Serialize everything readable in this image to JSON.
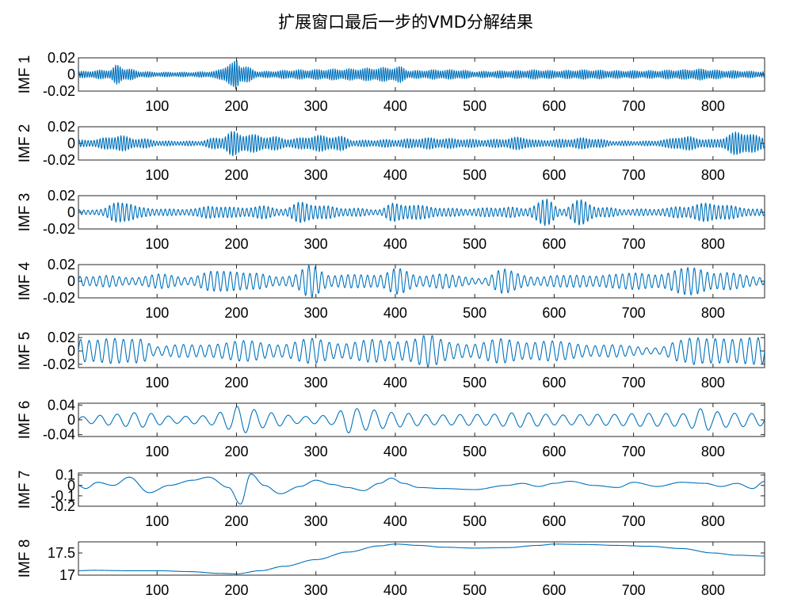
{
  "figure": {
    "title": "扩展窗口最后一步的VMD分解结果",
    "line_color": "#0072BD"
  },
  "chart_data": [
    {
      "type": "line",
      "ylabel": "IMF 1",
      "xlim": [
        1,
        865
      ],
      "ylim": [
        -0.02,
        0.02
      ],
      "xticks": [
        100,
        200,
        300,
        400,
        500,
        600,
        700,
        800
      ],
      "yticks": [
        -0.02,
        0,
        0.02
      ],
      "ytick_labels": [
        "-0.02",
        "0",
        "0.02"
      ],
      "series": [
        {
          "x": [
            1,
            40,
            50,
            60,
            80,
            100,
            140,
            170,
            195,
            200,
            205,
            230,
            280,
            330,
            400,
            405,
            420,
            450,
            480,
            500,
            550,
            580,
            600,
            640,
            680,
            720,
            760,
            780,
            820,
            860,
            865
          ],
          "envelope": [
            0.004,
            0.006,
            0.012,
            0.008,
            0.004,
            0.003,
            0.003,
            0.004,
            0.014,
            0.02,
            0.012,
            0.004,
            0.006,
            0.007,
            0.009,
            0.01,
            0.005,
            0.006,
            0.006,
            0.004,
            0.005,
            0.006,
            0.005,
            0.006,
            0.005,
            0.005,
            0.006,
            0.007,
            0.005,
            0.004,
            0.004
          ],
          "cycles": 300
        }
      ]
    },
    {
      "type": "line",
      "ylabel": "IMF 2",
      "xlim": [
        1,
        865
      ],
      "ylim": [
        -0.02,
        0.02
      ],
      "xticks": [
        100,
        200,
        300,
        400,
        500,
        600,
        700,
        800
      ],
      "yticks": [
        -0.02,
        0,
        0.02
      ],
      "ytick_labels": [
        "-0.02",
        "0",
        "0.02"
      ],
      "series": [
        {
          "x": [
            1,
            20,
            50,
            80,
            110,
            150,
            180,
            195,
            210,
            240,
            270,
            300,
            330,
            350,
            400,
            440,
            480,
            500,
            520,
            560,
            580,
            600,
            640,
            680,
            720,
            740,
            760,
            800,
            835,
            865
          ],
          "envelope": [
            0.004,
            0.005,
            0.01,
            0.006,
            0.003,
            0.003,
            0.008,
            0.015,
            0.012,
            0.009,
            0.006,
            0.01,
            0.009,
            0.004,
            0.005,
            0.007,
            0.006,
            0.005,
            0.005,
            0.008,
            0.004,
            0.005,
            0.007,
            0.003,
            0.003,
            0.005,
            0.009,
            0.005,
            0.015,
            0.008
          ],
          "cycles": 230
        }
      ]
    },
    {
      "type": "line",
      "ylabel": "IMF 3",
      "xlim": [
        1,
        865
      ],
      "ylim": [
        -0.02,
        0.02
      ],
      "xticks": [
        100,
        200,
        300,
        400,
        500,
        600,
        700,
        800
      ],
      "yticks": [
        -0.02,
        0,
        0.02
      ],
      "ytick_labels": [
        "-0.02",
        "0",
        "0.02"
      ],
      "series": [
        {
          "x": [
            1,
            30,
            55,
            80,
            120,
            150,
            170,
            200,
            230,
            260,
            285,
            310,
            350,
            380,
            400,
            440,
            470,
            500,
            540,
            560,
            590,
            610,
            635,
            660,
            700,
            740,
            760,
            800,
            840,
            865
          ],
          "envelope": [
            0.003,
            0.004,
            0.016,
            0.006,
            0.004,
            0.005,
            0.009,
            0.006,
            0.008,
            0.005,
            0.014,
            0.008,
            0.005,
            0.004,
            0.012,
            0.008,
            0.005,
            0.005,
            0.007,
            0.005,
            0.016,
            0.005,
            0.016,
            0.006,
            0.004,
            0.005,
            0.008,
            0.012,
            0.006,
            0.004
          ],
          "cycles": 160
        }
      ]
    },
    {
      "type": "line",
      "ylabel": "IMF 4",
      "xlim": [
        1,
        865
      ],
      "ylim": [
        -0.02,
        0.02
      ],
      "xticks": [
        100,
        200,
        300,
        400,
        500,
        600,
        700,
        800
      ],
      "yticks": [
        -0.02,
        0,
        0.02
      ],
      "ytick_labels": [
        "-0.02",
        "0",
        "0.02"
      ],
      "series": [
        {
          "x": [
            1,
            30,
            60,
            100,
            140,
            170,
            195,
            220,
            250,
            270,
            295,
            320,
            350,
            380,
            400,
            430,
            450,
            480,
            510,
            540,
            580,
            620,
            650,
            680,
            720,
            760,
            780,
            810,
            840,
            865
          ],
          "envelope": [
            0.007,
            0.008,
            0.005,
            0.009,
            0.006,
            0.012,
            0.016,
            0.01,
            0.007,
            0.008,
            0.02,
            0.009,
            0.008,
            0.01,
            0.016,
            0.008,
            0.01,
            0.007,
            0.004,
            0.016,
            0.005,
            0.01,
            0.006,
            0.012,
            0.009,
            0.016,
            0.017,
            0.012,
            0.008,
            0.006
          ],
          "cycles": 105
        }
      ]
    },
    {
      "type": "line",
      "ylabel": "IMF 5",
      "xlim": [
        1,
        865
      ],
      "ylim": [
        -0.025,
        0.025
      ],
      "xticks": [
        100,
        200,
        300,
        400,
        500,
        600,
        700,
        800
      ],
      "yticks": [
        -0.02,
        0,
        0.02
      ],
      "ytick_labels": [
        "-0.02",
        "0",
        "0.02"
      ],
      "series": [
        {
          "x": [
            1,
            30,
            60,
            80,
            100,
            140,
            180,
            220,
            260,
            300,
            340,
            380,
            420,
            440,
            470,
            500,
            540,
            580,
            620,
            660,
            700,
            730,
            760,
            780,
            800,
            830,
            865
          ],
          "envelope": [
            0.024,
            0.02,
            0.018,
            0.024,
            0.008,
            0.01,
            0.014,
            0.016,
            0.012,
            0.02,
            0.014,
            0.018,
            0.02,
            0.024,
            0.016,
            0.012,
            0.02,
            0.016,
            0.014,
            0.01,
            0.008,
            0.006,
            0.016,
            0.024,
            0.026,
            0.018,
            0.024
          ],
          "cycles": 80
        }
      ]
    },
    {
      "type": "line",
      "ylabel": "IMF 6",
      "xlim": [
        1,
        865
      ],
      "ylim": [
        -0.045,
        0.045
      ],
      "xticks": [
        100,
        200,
        300,
        400,
        500,
        600,
        700,
        800
      ],
      "yticks": [
        -0.04,
        0,
        0.04
      ],
      "ytick_labels": [
        "-0.04",
        "0",
        "0.04"
      ],
      "series": [
        {
          "x": [
            1,
            40,
            80,
            120,
            160,
            190,
            200,
            240,
            280,
            320,
            340,
            360,
            400,
            440,
            480,
            520,
            560,
            600,
            640,
            680,
            720,
            760,
            790,
            800,
            830,
            865
          ],
          "envelope": [
            0.012,
            0.016,
            0.02,
            0.012,
            0.016,
            0.03,
            0.04,
            0.02,
            0.012,
            0.018,
            0.044,
            0.03,
            0.02,
            0.018,
            0.02,
            0.016,
            0.02,
            0.018,
            0.02,
            0.016,
            0.018,
            0.022,
            0.045,
            0.03,
            0.02,
            0.016
          ],
          "cycles": 40
        }
      ]
    },
    {
      "type": "line",
      "ylabel": "IMF 7",
      "xlim": [
        1,
        865
      ],
      "ylim": [
        -0.2,
        0.12
      ],
      "xticks": [
        100,
        200,
        300,
        400,
        500,
        600,
        700,
        800
      ],
      "yticks": [
        -0.2,
        -0.1,
        0,
        0.1
      ],
      "ytick_labels": [
        "-0.2",
        "-0.1",
        "0",
        "0.1"
      ],
      "series": [
        {
          "x": [
            1,
            10,
            25,
            45,
            65,
            90,
            115,
            145,
            165,
            190,
            205,
            218,
            235,
            255,
            280,
            300,
            320,
            340,
            360,
            380,
            395,
            410,
            430,
            460,
            500,
            540,
            560,
            580,
            600,
            620,
            650,
            680,
            700,
            730,
            760,
            790,
            810,
            830,
            850,
            865
          ],
          "y": [
            0.0,
            -0.03,
            0.03,
            0.0,
            0.08,
            -0.07,
            0.0,
            0.05,
            0.08,
            -0.02,
            -0.18,
            0.11,
            0.0,
            -0.08,
            -0.01,
            0.05,
            0.01,
            -0.02,
            -0.05,
            0.02,
            0.07,
            0.02,
            -0.02,
            -0.03,
            -0.04,
            0.0,
            0.02,
            -0.01,
            0.02,
            0.04,
            0.0,
            -0.02,
            0.03,
            -0.01,
            0.03,
            0.02,
            -0.01,
            0.02,
            -0.03,
            0.04
          ]
        }
      ]
    },
    {
      "type": "line",
      "ylabel": "IMF 8",
      "xlim": [
        1,
        865
      ],
      "ylim": [
        17.0,
        17.75
      ],
      "xticks": [
        100,
        200,
        300,
        400,
        500,
        600,
        700,
        800
      ],
      "yticks": [
        17,
        17.5
      ],
      "ytick_labels": [
        "17",
        "17.5"
      ],
      "series": [
        {
          "x": [
            1,
            20,
            60,
            100,
            140,
            180,
            200,
            230,
            260,
            300,
            340,
            380,
            400,
            430,
            460,
            500,
            540,
            580,
            600,
            640,
            680,
            720,
            760,
            800,
            830,
            865
          ],
          "y": [
            17.1,
            17.11,
            17.1,
            17.1,
            17.08,
            17.04,
            17.03,
            17.1,
            17.2,
            17.35,
            17.52,
            17.66,
            17.7,
            17.67,
            17.63,
            17.61,
            17.62,
            17.67,
            17.7,
            17.69,
            17.67,
            17.65,
            17.6,
            17.5,
            17.45,
            17.43
          ]
        }
      ]
    }
  ]
}
